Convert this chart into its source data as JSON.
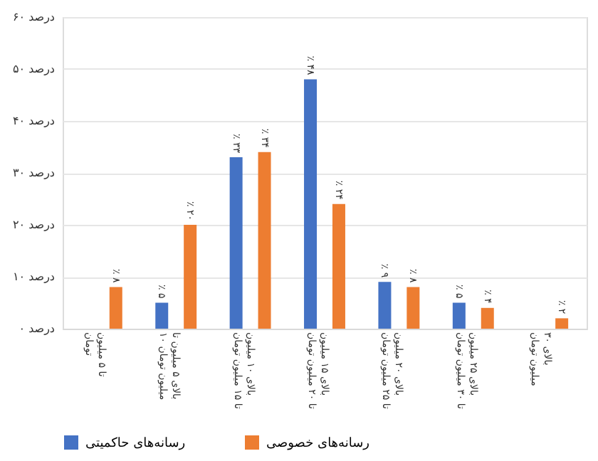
{
  "chart_data": {
    "type": "bar",
    "categories": [
      "تا ۵ میلیون تومان",
      "بالای ۵ میلیون تا ۱۰ میلیون تومان",
      "بالای ۱۰ میلیون تا ۱۵ میلیون تومان",
      "بالای ۱۵ میلیون تا ۲۰ میلیون تومان",
      "بالای ۲۰ میلیون تا ۲۵ میلیون تومان",
      "بالای ۲۵ میلیون تا ۳۰ میلیون تومان",
      "بالای ۳۰ میلیون تومان"
    ],
    "series": [
      {
        "name": "رسانه‌های حاکمیتی",
        "color": "#4472c4",
        "values": [
          null,
          5,
          33,
          48,
          9,
          5,
          null
        ],
        "value_labels": [
          null,
          "٪ ۵",
          "٪ ۳۳",
          "٪ ۴۸",
          "٪ ۹",
          "٪ ۵",
          null
        ]
      },
      {
        "name": "رسانه‌های خصوصی",
        "color": "#ed7d31",
        "values": [
          8,
          20,
          34,
          24,
          8,
          4,
          2
        ],
        "value_labels": [
          "٪ ۸",
          "٪ ۲۰",
          "٪ ۳۴",
          "٪ ۲۴",
          "٪ ۸",
          "٪ ۴",
          "٪ ۲"
        ]
      }
    ],
    "ylim": [
      0,
      60
    ],
    "yticks": [
      {
        "value": 0,
        "label": "۰ درصد"
      },
      {
        "value": 10,
        "label": "۱۰ درصد"
      },
      {
        "value": 20,
        "label": "۲۰ درصد"
      },
      {
        "value": 30,
        "label": "۳۰ درصد"
      },
      {
        "value": 40,
        "label": "۴۰ درصد"
      },
      {
        "value": 50,
        "label": "۵۰ درصد"
      },
      {
        "value": 60,
        "label": "۶۰ درصد"
      }
    ],
    "grid": "y",
    "legend": "bottom"
  }
}
